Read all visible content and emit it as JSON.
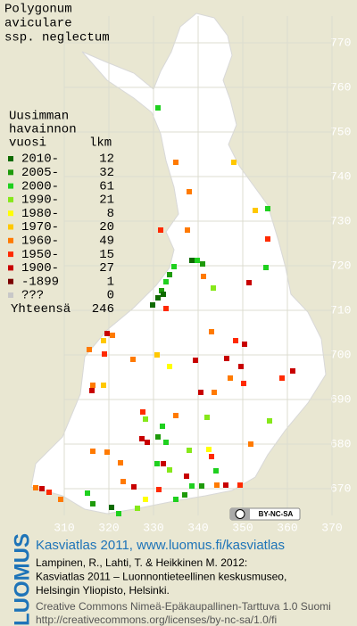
{
  "title": [
    "Polygonum",
    "aviculare",
    "ssp. neglectum"
  ],
  "legend": {
    "heading": [
      "Uusimman",
      "havainnon",
      "vuosi"
    ],
    "count_heading": "lkm",
    "entries": [
      {
        "label": "2010-",
        "count": 12,
        "color": "#0f6a00"
      },
      {
        "label": "2005-",
        "count": 32,
        "color": "#1e9a0a"
      },
      {
        "label": "2000-",
        "count": 61,
        "color": "#1fd01f"
      },
      {
        "label": "1990-",
        "count": 21,
        "color": "#86e81a"
      },
      {
        "label": "1980-",
        "count": 8,
        "color": "#ffff00"
      },
      {
        "label": "1970-",
        "count": 20,
        "color": "#ffc800"
      },
      {
        "label": "1960-",
        "count": 49,
        "color": "#ff7a00"
      },
      {
        "label": "1950-",
        "count": 15,
        "color": "#ff2a00"
      },
      {
        "label": "1900-",
        "count": 27,
        "color": "#c80000"
      },
      {
        "label": "-1899",
        "count": 1,
        "color": "#7a0000"
      },
      {
        "label": "???",
        "count": 0,
        "color": "#c8c8c8"
      }
    ],
    "total": {
      "label": "Yhteensä",
      "count": 246
    }
  },
  "grid": {
    "y_labels": [
      770,
      760,
      750,
      740,
      730,
      720,
      710,
      700,
      690,
      680,
      670
    ],
    "x_labels": [
      310,
      320,
      330,
      340,
      350,
      360,
      370
    ]
  },
  "license_badge": "BY-NC-SA",
  "footer": {
    "brand": "LUOMUS",
    "heading": "Kasviatlas 2011, www.luomus.fi/kasviatlas",
    "citation": [
      "Lampinen, R., Lahti, T. & Heikkinen M. 2012:",
      "Kasviatlas 2011 – Luonnontieteellinen keskusmuseo,",
      "Helsingin Yliopisto, Helsinki."
    ],
    "license": [
      "Creative Commons Nimeä-Epäkaupallinen-Tarttuva 1.0 Suomi",
      "http://creativecommons.org/licenses/by-nc-sa/1.0/fi"
    ]
  }
}
